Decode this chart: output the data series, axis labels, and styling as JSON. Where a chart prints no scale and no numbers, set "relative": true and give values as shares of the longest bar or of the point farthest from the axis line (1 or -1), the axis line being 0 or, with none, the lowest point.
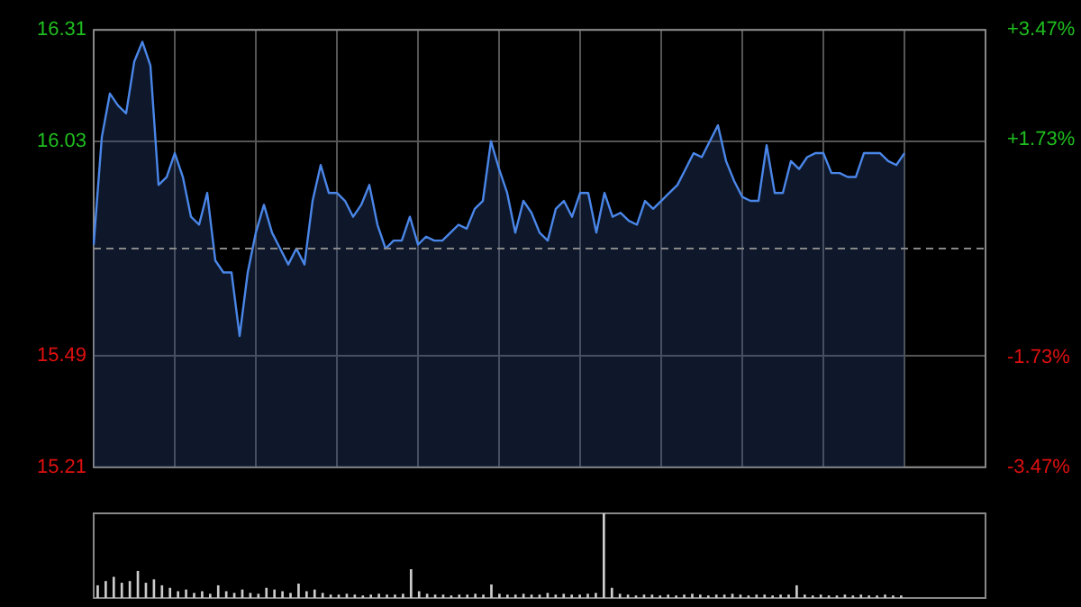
{
  "chart_data": [
    {
      "type": "area",
      "categories": [
        null,
        null,
        null,
        null,
        null,
        null,
        null,
        null,
        null,
        null,
        null,
        null,
        null,
        null,
        null,
        null,
        null,
        null,
        null,
        null,
        null,
        null,
        null,
        null,
        null,
        null,
        null,
        null,
        null,
        null,
        null,
        null,
        null,
        null,
        null,
        null,
        null,
        null,
        null,
        null,
        null,
        null,
        null,
        null,
        null,
        null,
        null,
        null,
        null,
        null,
        null,
        null,
        null,
        null,
        null,
        null,
        null,
        null,
        null,
        null,
        null,
        null,
        null,
        null,
        null,
        null,
        null,
        null,
        null,
        null,
        null,
        null,
        null,
        null,
        null,
        null,
        null,
        null,
        null,
        null,
        null,
        null,
        null,
        null,
        null,
        null,
        null,
        null,
        null,
        null,
        null,
        null,
        null,
        null,
        null,
        null,
        null,
        null,
        null,
        null,
        null,
        null,
        null,
        null,
        null,
        null,
        null,
        null,
        null,
        null,
        null
      ],
      "series": [
        {
          "color": "#4a86e8",
          "values": [
            15.77,
            16.04,
            16.15,
            16.12,
            16.1,
            16.23,
            16.28,
            16.22,
            15.92,
            15.94,
            16.0,
            15.94,
            15.84,
            15.82,
            15.9,
            15.73,
            15.7,
            15.7,
            15.54,
            15.7,
            15.8,
            15.87,
            15.8,
            15.76,
            15.72,
            15.76,
            15.72,
            15.88,
            15.97,
            15.9,
            15.9,
            15.88,
            15.84,
            15.87,
            15.92,
            15.82,
            15.76,
            15.78,
            15.78,
            15.84,
            15.77,
            15.79,
            15.78,
            15.78,
            15.8,
            15.82,
            15.81,
            15.86,
            15.88,
            16.03,
            15.96,
            15.9,
            15.8,
            15.88,
            15.85,
            15.8,
            15.78,
            15.86,
            15.88,
            15.84,
            15.9,
            15.9,
            15.8,
            15.9,
            15.84,
            15.85,
            15.83,
            15.82,
            15.88,
            15.86,
            15.88,
            15.9,
            15.92,
            15.96,
            16.0,
            15.99,
            16.03,
            16.07,
            15.98,
            15.93,
            15.89,
            15.88,
            15.88,
            16.02,
            15.9,
            15.9,
            15.98,
            15.96,
            15.99,
            16.0,
            16.0,
            15.95,
            15.95,
            15.94,
            15.94,
            16.0,
            16.0,
            16.0,
            15.98,
            15.97,
            16.0,
            null,
            null,
            null,
            null,
            null,
            null,
            null,
            null,
            null,
            null
          ]
        }
      ],
      "ylim": [
        15.21,
        16.31
      ],
      "yticks": [
        15.21,
        15.49,
        16.03,
        16.31
      ],
      "y2lim": [
        -3.47,
        3.47
      ],
      "y2ticks": [
        {
          "value": -3.47,
          "label": "-3.47%"
        },
        {
          "value": -1.73,
          "label": "-1.73%"
        },
        {
          "value": 1.73,
          "label": "+1.73%"
        },
        {
          "value": 3.47,
          "label": "+3.47%"
        }
      ],
      "ref_lines": [
        {
          "axis": "y",
          "value": 15.76,
          "line_style": "dashed",
          "color": "#888888"
        }
      ],
      "grid": true,
      "legend": false,
      "marker": "none",
      "line_style": "solid"
    },
    {
      "type": "bar",
      "relative": true,
      "legend": false,
      "grid": false,
      "categories": [
        null,
        null,
        null,
        null,
        null,
        null,
        null,
        null,
        null,
        null,
        null,
        null,
        null,
        null,
        null,
        null,
        null,
        null,
        null,
        null,
        null,
        null,
        null,
        null,
        null,
        null,
        null,
        null,
        null,
        null,
        null,
        null,
        null,
        null,
        null,
        null,
        null,
        null,
        null,
        null,
        null,
        null,
        null,
        null,
        null,
        null,
        null,
        null,
        null,
        null,
        null,
        null,
        null,
        null,
        null,
        null,
        null,
        null,
        null,
        null,
        null,
        null,
        null,
        null,
        null,
        null,
        null,
        null,
        null,
        null,
        null,
        null,
        null,
        null,
        null,
        null,
        null,
        null,
        null,
        null,
        null,
        null,
        null,
        null,
        null,
        null,
        null,
        null,
        null,
        null,
        null,
        null,
        null,
        null,
        null,
        null,
        null,
        null,
        null,
        null,
        null,
        null,
        null,
        null,
        null,
        null,
        null,
        null,
        null,
        null,
        null
      ],
      "series": [
        {
          "color": "#cccccc",
          "values": [
            0.15,
            0.2,
            0.25,
            0.18,
            0.2,
            0.32,
            0.18,
            0.22,
            0.15,
            0.12,
            0.08,
            0.1,
            0.06,
            0.08,
            0.05,
            0.15,
            0.08,
            0.06,
            0.1,
            0.06,
            0.05,
            0.12,
            0.1,
            0.08,
            0.06,
            0.17,
            0.08,
            0.1,
            0.06,
            0.04,
            0.04,
            0.05,
            0.04,
            0.03,
            0.04,
            0.05,
            0.04,
            0.04,
            0.05,
            0.34,
            0.08,
            0.05,
            0.04,
            0.04,
            0.03,
            0.04,
            0.04,
            0.05,
            0.04,
            0.16,
            0.05,
            0.04,
            0.04,
            0.05,
            0.04,
            0.04,
            0.06,
            0.04,
            0.05,
            0.04,
            0.04,
            0.05,
            0.06,
            1,
            0.12,
            0.05,
            0.04,
            0.03,
            0.04,
            0.04,
            0.03,
            0.04,
            0.03,
            0.04,
            0.05,
            0.04,
            0.03,
            0.04,
            0.04,
            0.05,
            0.04,
            0.03,
            0.04,
            0.04,
            0.03,
            0.04,
            0.04,
            0.15,
            0.04,
            0.03,
            0.04,
            0.03,
            0.03,
            0.04,
            0.03,
            0.04,
            0.03,
            0.03,
            0.04,
            0.03,
            0.03,
            null,
            null,
            null,
            null,
            null,
            null,
            null,
            null,
            null,
            null
          ]
        }
      ]
    }
  ]
}
